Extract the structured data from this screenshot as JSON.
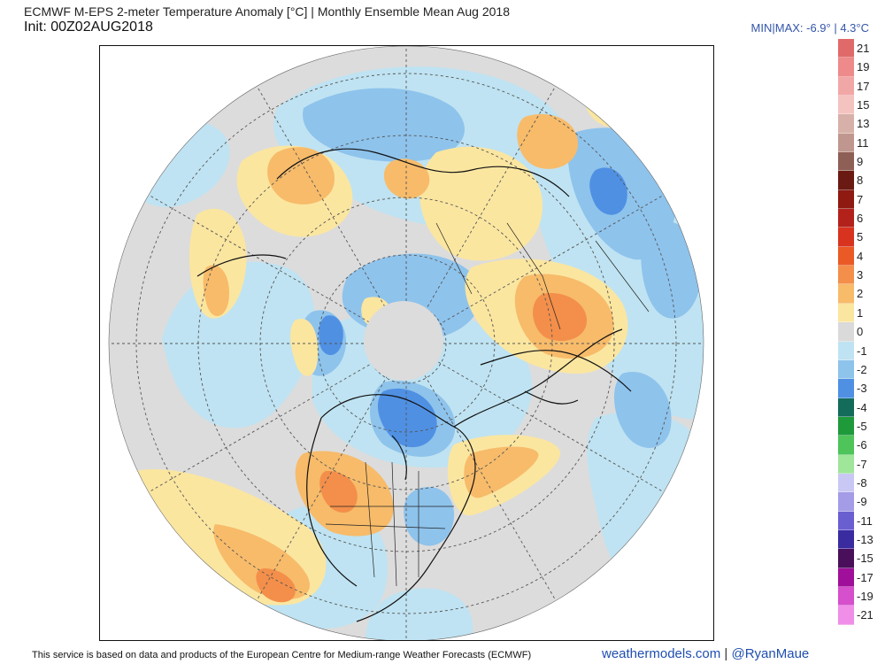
{
  "header": {
    "title": "ECMWF M-EPS 2-meter Temperature Anomaly [°C] | Monthly Ensemble Mean Aug 2018",
    "init": "Init: 00Z02AUG2018",
    "minmax": "MIN|MAX: -6.9° | 4.3°C"
  },
  "colorbar": {
    "bins": [
      {
        "label": "21",
        "color": "#e06a6a"
      },
      {
        "label": "19",
        "color": "#ee8a8a"
      },
      {
        "label": "17",
        "color": "#f2a7a7"
      },
      {
        "label": "15",
        "color": "#f4c3c0"
      },
      {
        "label": "13",
        "color": "#d7b1a9"
      },
      {
        "label": "11",
        "color": "#bf978e"
      },
      {
        "label": "9",
        "color": "#8e5f55"
      },
      {
        "label": "8",
        "color": "#6a1a12"
      },
      {
        "label": "7",
        "color": "#8e1a12"
      },
      {
        "label": "6",
        "color": "#b3221a"
      },
      {
        "label": "5",
        "color": "#d8331f"
      },
      {
        "label": "4",
        "color": "#ea5a26"
      },
      {
        "label": "3",
        "color": "#f38f4a"
      },
      {
        "label": "2",
        "color": "#f7bb6a"
      },
      {
        "label": "1",
        "color": "#fbe6a0"
      },
      {
        "label": "0",
        "color": "#dadada"
      },
      {
        "label": "-1",
        "color": "#bfe3f2"
      },
      {
        "label": "-2",
        "color": "#8ec3ec"
      },
      {
        "label": "-3",
        "color": "#4f90e3"
      },
      {
        "label": "-4",
        "color": "#136b5a"
      },
      {
        "label": "-5",
        "color": "#1f9a3a"
      },
      {
        "label": "-6",
        "color": "#4ec45a"
      },
      {
        "label": "-7",
        "color": "#9fe59a"
      },
      {
        "label": "-8",
        "color": "#c9c8f4"
      },
      {
        "label": "-9",
        "color": "#a49ce6"
      },
      {
        "label": "-11",
        "color": "#6a5fd0"
      },
      {
        "label": "-13",
        "color": "#3a2ba0"
      },
      {
        "label": "-15",
        "color": "#4a0f5a"
      },
      {
        "label": "-17",
        "color": "#a00f9a"
      },
      {
        "label": "-19",
        "color": "#d64fcc"
      },
      {
        "label": "-21",
        "color": "#f08ee8"
      }
    ]
  },
  "footer": {
    "credit": "This service is based on data and products of the European Centre for Medium-range Weather Forecasts (ECMWF)",
    "site": "weathermodels.com",
    "separator": "|",
    "handle": "@RyanMaue"
  }
}
